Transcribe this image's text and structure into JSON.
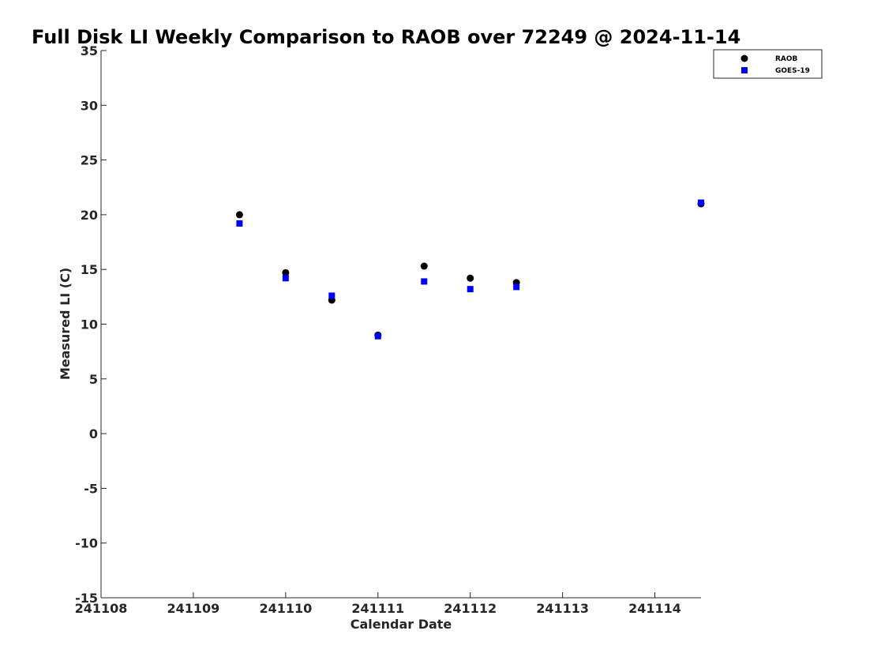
{
  "chart_data": {
    "type": "scatter",
    "title": "Full Disk LI Weekly Comparison to RAOB over 72249 @ 2024-11-14",
    "xlabel": "Calendar Date",
    "ylabel": "Measured LI (C)",
    "xlim": [
      0,
      6.5
    ],
    "ylim": [
      -15,
      35
    ],
    "x_ticks": [
      {
        "value": 0,
        "label": "241108"
      },
      {
        "value": 1,
        "label": "241109"
      },
      {
        "value": 2,
        "label": "241110"
      },
      {
        "value": 3,
        "label": "241111"
      },
      {
        "value": 4,
        "label": "241112"
      },
      {
        "value": 5,
        "label": "241113"
      },
      {
        "value": 6,
        "label": "241114"
      }
    ],
    "y_ticks": [
      35,
      30,
      25,
      20,
      15,
      10,
      5,
      0,
      -5,
      -10,
      -15
    ],
    "grid": false,
    "legend_position": "top-right",
    "series": [
      {
        "name": "RAOB",
        "marker": "circle",
        "color": "#000000",
        "x": [
          1.5,
          2.0,
          2.5,
          3.0,
          3.5,
          4.0,
          4.5,
          6.5
        ],
        "y": [
          20.0,
          14.7,
          12.2,
          9.0,
          15.3,
          14.2,
          13.8,
          21.0
        ]
      },
      {
        "name": "GOES-19",
        "marker": "square",
        "color": "#0000ff",
        "x": [
          1.5,
          2.0,
          2.5,
          3.0,
          3.5,
          4.0,
          4.5,
          6.5
        ],
        "y": [
          19.2,
          14.2,
          12.6,
          8.9,
          13.9,
          13.2,
          13.4,
          21.1
        ]
      }
    ]
  }
}
